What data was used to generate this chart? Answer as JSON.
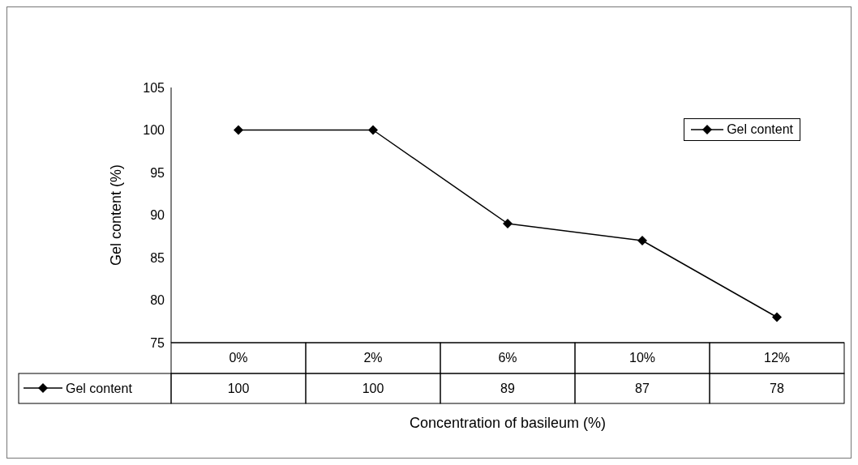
{
  "chart_data": {
    "type": "line",
    "xlabel": "Concentration of basileum (%)",
    "ylabel": "Gel content (%)",
    "categories": [
      "0%",
      "2%",
      "6%",
      "10%",
      "12%"
    ],
    "series": [
      {
        "name": "Gel content",
        "color": "#000000",
        "values": [
          100,
          100,
          89,
          87,
          78
        ]
      }
    ],
    "ylim": [
      75,
      105
    ],
    "yticks": [
      75,
      80,
      85,
      90,
      95,
      100,
      105
    ],
    "data_labels": true,
    "legend": "top right",
    "marker": "diamond",
    "line_style": "solid"
  }
}
